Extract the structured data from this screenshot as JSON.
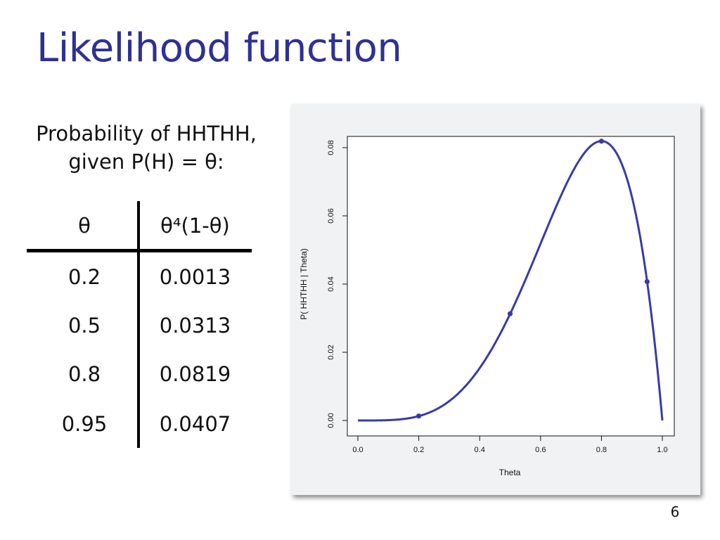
{
  "slide": {
    "title": "Likelihood function",
    "caption_line1": "Probability of HHTHH,",
    "caption_line2": "given P(H) = θ:",
    "page_number": "6"
  },
  "table": {
    "headers": [
      "θ",
      "θ⁴(1-θ)"
    ],
    "rows": [
      [
        "0.2",
        "0.0013"
      ],
      [
        "0.5",
        "0.0313"
      ],
      [
        "0.8",
        "0.0819"
      ],
      [
        "0.95",
        "0.0407"
      ]
    ]
  },
  "chart_data": {
    "type": "line",
    "xlabel": "Theta",
    "ylabel": "P( HHTHH | Theta)",
    "xlim": [
      0,
      1
    ],
    "ylim": [
      0,
      0.082
    ],
    "xticks": [
      "0.0",
      "0.2",
      "0.4",
      "0.6",
      "0.8",
      "1.0"
    ],
    "yticks": [
      "0.00",
      "0.02",
      "0.04",
      "0.06",
      "0.08"
    ],
    "curve": {
      "function": "theta^4 * (1 - theta)",
      "color": "#3a3aa6"
    },
    "points": [
      {
        "x": 0.2,
        "y": 0.0013
      },
      {
        "x": 0.5,
        "y": 0.0313
      },
      {
        "x": 0.8,
        "y": 0.0819
      },
      {
        "x": 0.95,
        "y": 0.0407
      }
    ]
  }
}
